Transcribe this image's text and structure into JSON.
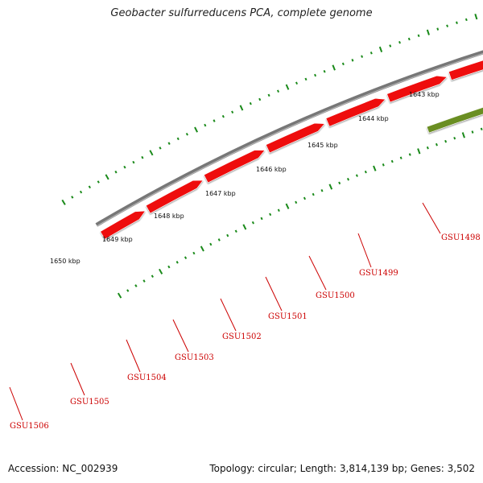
{
  "title": "Geobacter sulfurreducens PCA, complete genome",
  "accession_text": "Accession: NC_002939",
  "summary_text": "Topology: circular; Length: 3,814,139 bp; Genes: 3,502",
  "scale_labels": [
    "1643 kbp",
    "1644 kbp",
    "1645 kbp",
    "1646 kbp",
    "1647 kbp",
    "1648 kbp",
    "1649 kbp",
    "1650 kbp"
  ],
  "gene_labels": [
    "GSU1498",
    "GSU1499",
    "GSU1500",
    "GSU1501",
    "GSU1502",
    "GSU1503",
    "GSU1504",
    "GSU1505",
    "GSU1506"
  ],
  "colors": {
    "backbone": "#777777",
    "scale_ticks": "#1a8a1a",
    "gene_red": "#ee1111",
    "gene_gray": "#bbbbbb",
    "gene_aqua": "#22eeaa",
    "gene_blue": "#1111cc",
    "gene_olive": "#6b8e23",
    "gene_cyan": "#11cccc",
    "label_red": "#cc0000"
  }
}
